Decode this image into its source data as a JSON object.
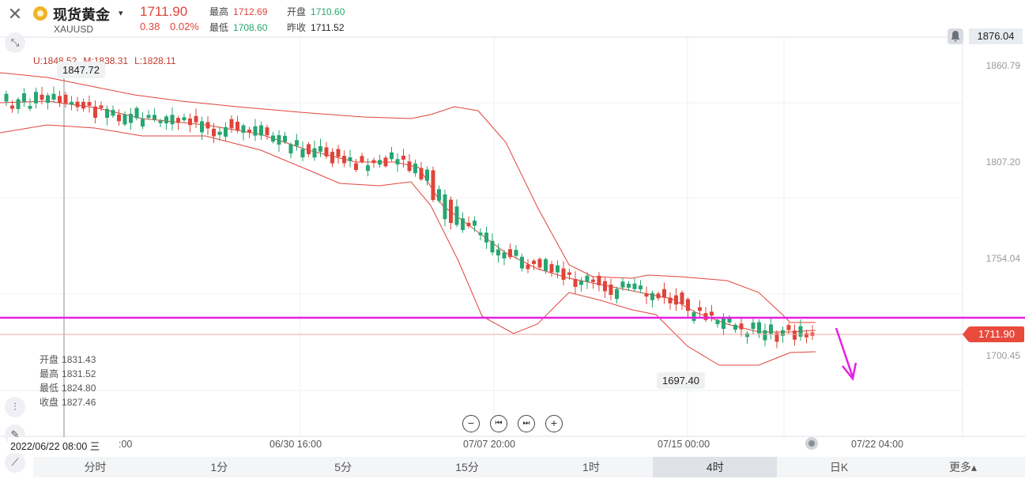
{
  "header": {
    "instrument_name": "现货黄金",
    "instrument_code": "XAUUSD",
    "caret": "▾",
    "price": "1711.90",
    "change": "0.38",
    "change_pct": "0.02%",
    "stats": {
      "high_label": "最高",
      "high": "1712.69",
      "open_label": "开盘",
      "open": "1710.60",
      "low_label": "最低",
      "low": "1708.60",
      "prev_close_label": "昨收",
      "prev_close": "1711.52"
    }
  },
  "indicator": {
    "upper": "U:1848.52",
    "middle": "M:1838.31",
    "lower": "L:1828.11"
  },
  "price_axis": {
    "top_price": "1876.04",
    "ticks": [
      "1860.79",
      "1807.20",
      "1754.04",
      "1700.45"
    ],
    "current_price": "1711.90"
  },
  "labels": {
    "max_label": "1847.72",
    "min_label": "1697.40"
  },
  "ohlc_panel": {
    "open_label": "开盘",
    "open": "1831.43",
    "high_label": "最高",
    "high": "1831.52",
    "low_label": "最低",
    "low": "1824.80",
    "close_label": "收盘",
    "close": "1827.46"
  },
  "time_axis": {
    "cursor_date": "2022/06/22 08:00 三",
    "ticks": [
      ":00",
      "06/30 16:00",
      "07/07 20:00",
      "07/15 00:00",
      "07/22 04:00"
    ]
  },
  "zoom_controls": [
    "−",
    "⏮",
    "⏭",
    "+"
  ],
  "tabs": [
    {
      "label": "分时",
      "active": false
    },
    {
      "label": "1分",
      "active": false
    },
    {
      "label": "5分",
      "active": false
    },
    {
      "label": "15分",
      "active": false
    },
    {
      "label": "1时",
      "active": false
    },
    {
      "label": "4时",
      "active": true
    },
    {
      "label": "日K",
      "active": false
    },
    {
      "label": "更多▴",
      "active": false
    }
  ],
  "colors": {
    "up": "#e0443a",
    "down": "#26a671",
    "bollinger": "#e0443a",
    "horizontal_line": "#e61ee6",
    "arrow": "#e61ee6"
  },
  "icons": {
    "close": "close-icon",
    "collapse": "collapse-icon",
    "bell": "bell-icon",
    "indicator_tool": "indicator-icon",
    "draw_tool": "pencil-icon",
    "trend_tool": "trendline-icon"
  }
}
